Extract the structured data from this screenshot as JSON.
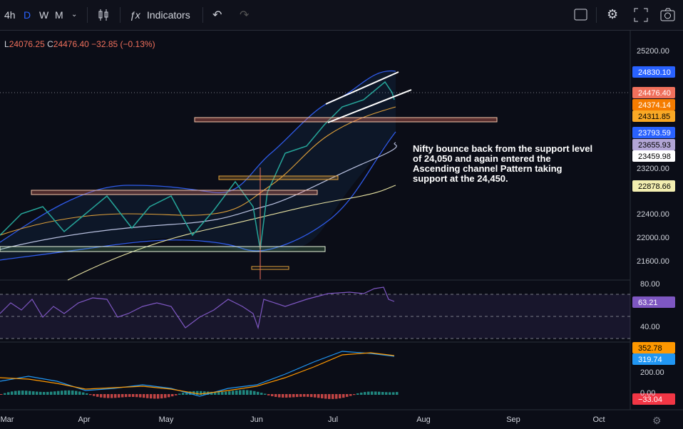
{
  "toolbar": {
    "interval": "4h",
    "day": "D",
    "week": "W",
    "month": "M",
    "indicators": "Indicators"
  },
  "legend": {
    "low_prefix": "L",
    "low": "24076.25",
    "close_prefix": "C",
    "close": "24476.40",
    "change": "−32.85 (−0.13%)"
  },
  "price_axis": [
    "25200.00",
    "23200.00",
    "22400.00",
    "22000.00",
    "21600.00"
  ],
  "price_badges": [
    "24830.10",
    "24476.40",
    "24374.14",
    "24311.85",
    "23793.59",
    "23655.93",
    "23459.98",
    "22878.66"
  ],
  "rsi_axis": [
    "80.00",
    "40.00"
  ],
  "rsi_badge": "63.21",
  "macd_axis": [
    "200.00",
    "0.00"
  ],
  "macd_badges": [
    "352.78",
    "319.74",
    "−33.04"
  ],
  "time_axis": [
    "Mar",
    "Apr",
    "May",
    "Jun",
    "Jul",
    "Aug",
    "Sep",
    "Oct"
  ],
  "annotation": "Nifty bounce back from the support level of 24,050 and again entered the Ascending channel Pattern taking support at the 24,450."
}
